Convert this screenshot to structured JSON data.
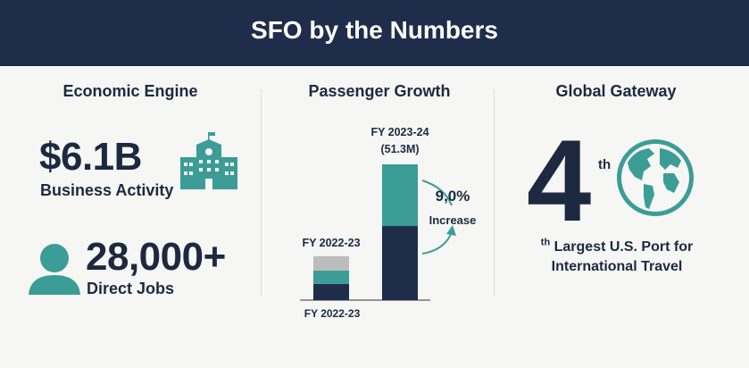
{
  "header": {
    "title": "SFO by the Numbers"
  },
  "columns": {
    "economic": {
      "heading": "Economic Engine",
      "stat1_value": "$6.1B",
      "stat1_label": "Business Activity",
      "stat1_icon": "building-icon",
      "stat2_value": "28,000+",
      "stat2_label": "Direct Jobs",
      "stat2_icon": "person-icon"
    },
    "passenger": {
      "heading": "Passenger Growth"
    },
    "global": {
      "heading": "Global Gateway",
      "rank": "4",
      "rank_suffix": "th",
      "line1_suffix": "th",
      "line1": " Largest U.S. Port for",
      "line2": "International Travel",
      "icon": "globe-icon"
    }
  },
  "colors": {
    "navy": "#1f2d4b",
    "teal": "#3b9d95",
    "gray": "#bdbdbd",
    "text": "#1c2940"
  },
  "chart_data": {
    "type": "bar",
    "stacked": true,
    "categories": [
      "FY 2022-23",
      "FY 2023-24"
    ],
    "category_labels_top": [
      "FY 2022-23",
      "FY 2023-24"
    ],
    "total_label": "(51.3M)",
    "bottom_label": "FY 2022-23",
    "series": [
      {
        "color": "#1f2d4b",
        "values": [
          6.1,
          28.0
        ]
      },
      {
        "color": "#3b9d95",
        "values": [
          5.1,
          23.3
        ]
      },
      {
        "color": "#bdbdbd",
        "values": [
          5.4,
          0
        ]
      }
    ],
    "annotation": {
      "value": "9,0%",
      "text": "Increase"
    },
    "grid": false
  }
}
